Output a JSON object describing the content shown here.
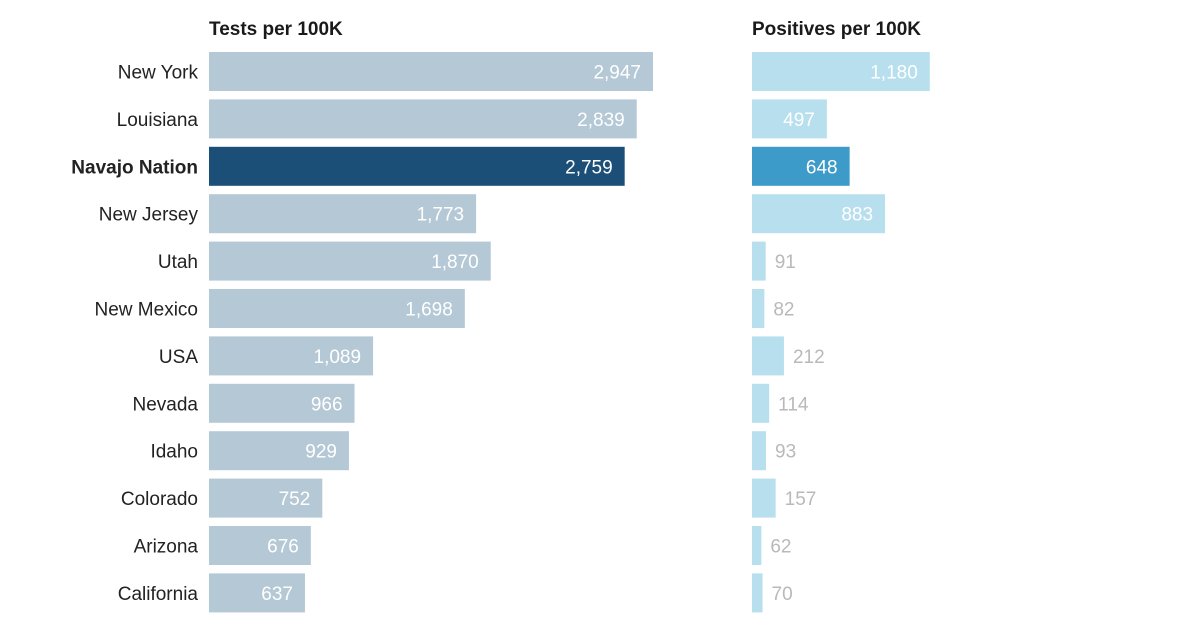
{
  "chart_data": {
    "type": "bar",
    "orientation": "horizontal",
    "categories": [
      "New York",
      "Louisiana",
      "Navajo Nation",
      "New Jersey",
      "Utah",
      "New Mexico",
      "USA",
      "Nevada",
      "Idaho",
      "Colorado",
      "Arizona",
      "California"
    ],
    "highlight": "Navajo Nation",
    "series": [
      {
        "name": "Tests per 100K",
        "title": "Tests per 100K",
        "values": [
          2947,
          2839,
          2759,
          1773,
          1870,
          1698,
          1089,
          966,
          929,
          752,
          676,
          637
        ],
        "labels": [
          "2,947",
          "2,839",
          "2,759",
          "1,773",
          "1,870",
          "1,698",
          "1,089",
          "966",
          "929",
          "752",
          "676",
          "637"
        ],
        "color": "#b5c8d6",
        "highlight_color": "#1b4f78"
      },
      {
        "name": "Positives per 100K",
        "title": "Positives per 100K",
        "values": [
          1180,
          497,
          648,
          883,
          91,
          82,
          212,
          114,
          93,
          157,
          62,
          70
        ],
        "labels": [
          "1,180",
          "497",
          "648",
          "883",
          "91",
          "82",
          "212",
          "114",
          "93",
          "157",
          "62",
          "70"
        ],
        "color": "#b8dfee",
        "highlight_color": "#3d9bc9"
      }
    ],
    "xlabel": "",
    "ylabel": "",
    "grid": false,
    "legend": "none"
  }
}
